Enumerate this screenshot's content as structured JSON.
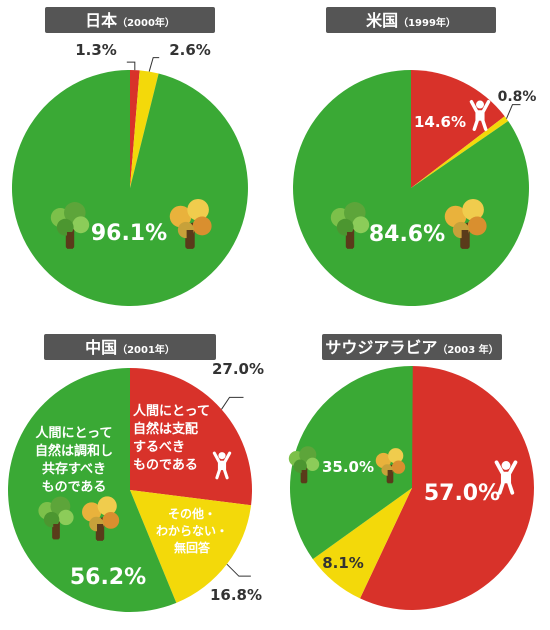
{
  "colors": {
    "green": "#3aa935",
    "red": "#d8322a",
    "yellow": "#f3d90a",
    "header_bg": "#555555",
    "label_dark": "#333333",
    "label_light": "#ffffff"
  },
  "icons": {
    "tree": "tree-icon",
    "person": "person-icon"
  },
  "chart_data": [
    {
      "type": "pie",
      "title": "日本",
      "year": "（2000年）",
      "slices": [
        {
          "key": "red",
          "value": 1.3,
          "label": "1.3%"
        },
        {
          "key": "yellow",
          "value": 2.6,
          "label": "2.6%"
        },
        {
          "key": "green",
          "value": 96.1,
          "label": "96.1%"
        }
      ]
    },
    {
      "type": "pie",
      "title": "米国",
      "year": "（1999年）",
      "slices": [
        {
          "key": "red",
          "value": 14.6,
          "label": "14.6%"
        },
        {
          "key": "yellow",
          "value": 0.8,
          "label": "0.8%"
        },
        {
          "key": "green",
          "value": 84.6,
          "label": "84.6%"
        }
      ]
    },
    {
      "type": "pie",
      "title": "中国",
      "year": "（2001年）",
      "slices": [
        {
          "key": "red",
          "value": 27.0,
          "label": "27.0%",
          "desc": [
            "人間にとって",
            "自然は支配",
            "するべき",
            "ものである"
          ]
        },
        {
          "key": "yellow",
          "value": 16.8,
          "label": "16.8%",
          "desc": [
            "その他・",
            "わからない・",
            "無回答"
          ]
        },
        {
          "key": "green",
          "value": 56.2,
          "label": "56.2%",
          "desc": [
            "人間にとって",
            "自然は調和し",
            "共存すべき",
            "ものである"
          ]
        }
      ]
    },
    {
      "type": "pie",
      "title": "サウジアラビア",
      "year": "（2003 年）",
      "slices": [
        {
          "key": "red",
          "value": 57.0,
          "label": "57.0%"
        },
        {
          "key": "yellow",
          "value": 8.1,
          "label": "8.1%"
        },
        {
          "key": "green",
          "value": 35.0,
          "label": "35.0%"
        }
      ]
    }
  ]
}
